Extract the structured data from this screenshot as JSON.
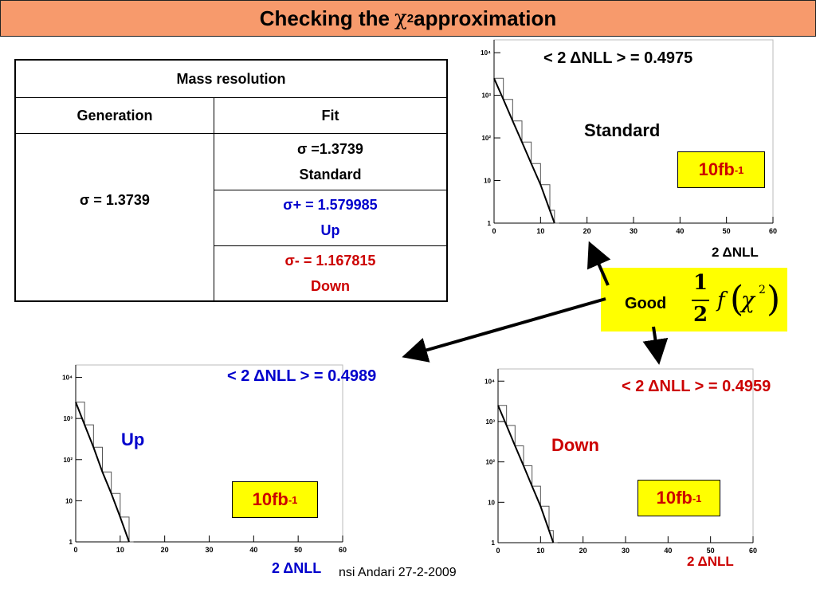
{
  "title": {
    "prefix": "Checking the ",
    "chi": "χ",
    "exp": "2",
    "suffix": " approximation"
  },
  "table": {
    "header": "Mass resolution",
    "col_generation": "Generation",
    "col_fit": "Fit",
    "generation_value": "σ = 1.3739",
    "rows": [
      {
        "sigma": "σ =1.3739",
        "label": "Standard",
        "color": "#000000"
      },
      {
        "sigma": "σ+ = 1.579985",
        "label": "Up",
        "color": "#0000cc"
      },
      {
        "sigma": "σ- = 1.167815",
        "label": "Down",
        "color": "#cc0000"
      }
    ]
  },
  "plots": {
    "standard": {
      "mean": "< 2 ΔNLL > = 0.4975",
      "name": "Standard",
      "lumi": "10fb",
      "lumi_exp": "-1",
      "xlabel": "2 ΔNLL",
      "color": "#000000"
    },
    "up": {
      "mean": "< 2 ΔNLL > = 0.4989",
      "name": "Up",
      "lumi": "10fb",
      "lumi_exp": "-1",
      "xlabel": "2 ΔNLL",
      "color": "#0000cc"
    },
    "down": {
      "mean": "< 2 ΔNLL > = 0.4959",
      "name": "Down",
      "lumi": "10fb",
      "lumi_exp": "-1",
      "xlabel": "2 ΔNLL",
      "color": "#cc0000"
    }
  },
  "good_box": {
    "label": "Good",
    "num": "1",
    "den": "2",
    "f": "f",
    "chi": "χ",
    "exp": "2"
  },
  "footer": {
    "text": "nsi Andari 27-2-2009"
  },
  "chart_data": [
    {
      "type": "line",
      "id": "standard",
      "xlabel": "2 ΔNLL",
      "x_ticks": [
        0,
        10,
        20,
        30,
        40,
        50,
        60
      ],
      "y_ticks": [
        "1",
        "10",
        "10²",
        "10³",
        "10⁴"
      ],
      "y_scale": "log",
      "xlim": [
        0,
        60
      ],
      "ylim": [
        1,
        20000
      ],
      "series": [
        {
          "x": [
            0,
            2,
            4,
            6,
            8,
            10,
            12,
            13
          ],
          "values": [
            2500,
            800,
            250,
            80,
            25,
            8,
            2,
            1
          ]
        }
      ]
    },
    {
      "type": "line",
      "id": "up",
      "xlabel": "2 ΔNLL",
      "x_ticks": [
        0,
        10,
        20,
        30,
        40,
        50,
        60
      ],
      "y_ticks": [
        "1",
        "10",
        "10²",
        "10³",
        "10⁴"
      ],
      "y_scale": "log",
      "xlim": [
        0,
        60
      ],
      "ylim": [
        1,
        20000
      ],
      "series": [
        {
          "x": [
            0,
            2,
            4,
            6,
            8,
            10,
            12
          ],
          "values": [
            2500,
            700,
            200,
            50,
            15,
            4,
            1
          ]
        }
      ]
    },
    {
      "type": "line",
      "id": "down",
      "xlabel": "2 ΔNLL",
      "x_ticks": [
        0,
        10,
        20,
        30,
        40,
        50,
        60
      ],
      "y_ticks": [
        "1",
        "10",
        "10²",
        "10³",
        "10⁴"
      ],
      "y_scale": "log",
      "xlim": [
        0,
        60
      ],
      "ylim": [
        1,
        20000
      ],
      "series": [
        {
          "x": [
            0,
            2,
            4,
            6,
            8,
            10,
            12,
            13
          ],
          "values": [
            2500,
            800,
            250,
            80,
            25,
            8,
            2,
            1
          ]
        }
      ]
    }
  ]
}
